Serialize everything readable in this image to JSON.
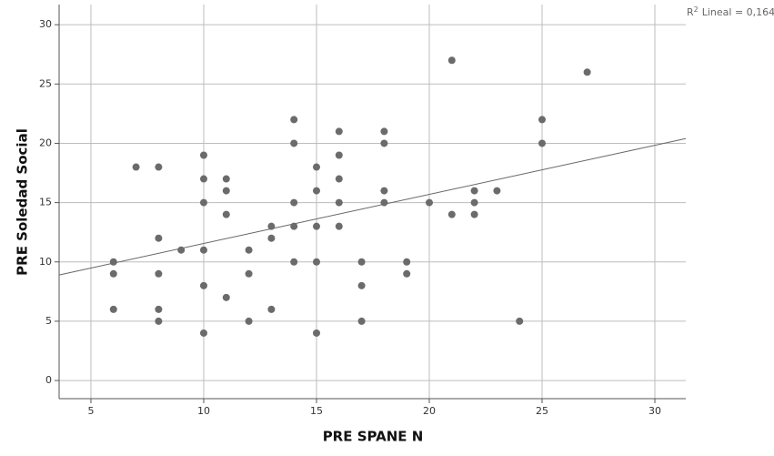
{
  "chart_data": {
    "type": "scatter",
    "x_label": "PRE SPANE N",
    "y_label": "PRE Soledad Social",
    "x": [
      6,
      6,
      6,
      7,
      8,
      8,
      8,
      8,
      8,
      9,
      10,
      10,
      10,
      10,
      10,
      10,
      11,
      11,
      11,
      11,
      12,
      12,
      12,
      13,
      13,
      13,
      14,
      14,
      14,
      14,
      14,
      15,
      15,
      15,
      15,
      15,
      16,
      16,
      16,
      16,
      16,
      17,
      17,
      17,
      18,
      18,
      18,
      18,
      19,
      19,
      20,
      21,
      21,
      22,
      22,
      22,
      23,
      24,
      25,
      25,
      27
    ],
    "values": [
      10,
      9,
      6,
      18,
      18,
      12,
      9,
      6,
      5,
      11,
      19,
      17,
      15,
      11,
      8,
      4,
      17,
      16,
      14,
      7,
      11,
      9,
      5,
      13,
      12,
      6,
      22,
      20,
      15,
      13,
      10,
      18,
      16,
      13,
      10,
      4,
      21,
      19,
      17,
      15,
      13,
      10,
      8,
      5,
      21,
      20,
      16,
      15,
      10,
      9,
      15,
      27,
      14,
      16,
      15,
      14,
      16,
      5,
      22,
      20,
      26
    ],
    "color": "#6b6b6b",
    "xlim": [
      3.59,
      31.37
    ],
    "ylim": [
      -1.53,
      31.7
    ],
    "xticks": [
      5,
      10,
      15,
      20,
      25,
      30
    ],
    "yticks": [
      0,
      5,
      10,
      15,
      20,
      25,
      30
    ],
    "grid": true,
    "fit_line": {
      "x": [
        3.59,
        31.37
      ],
      "y": [
        8.9,
        20.4
      ],
      "color": "#666666"
    },
    "fit_label": {
      "base": "R",
      "sup": "2",
      "text": "Lineal = 0,164"
    }
  }
}
